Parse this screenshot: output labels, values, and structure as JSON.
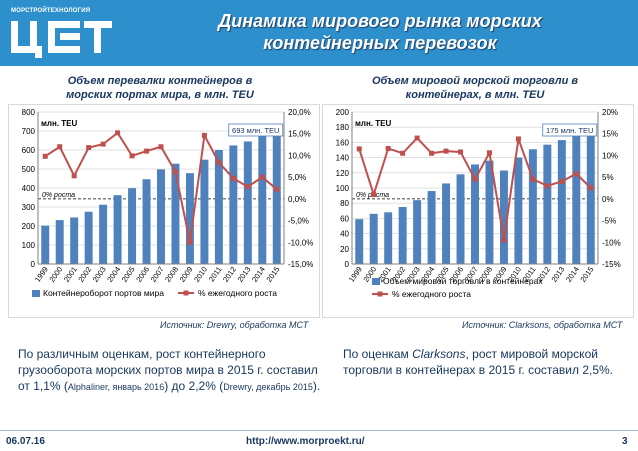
{
  "header": {
    "logo_caption": "МОРСТРОЙТЕХНОЛОГИЯ",
    "title_line1": "Динамика мирового рынка морских",
    "title_line2": "контейнерных перевозок",
    "colors": {
      "band": "#2e8fcd",
      "text": "#ffffff"
    }
  },
  "left": {
    "subtitle_line1": "Объем перевалки контейнеров в",
    "subtitle_line2": "морских портах мира, в млн. TEU",
    "source": "Источник: Drewry, обработка МСТ",
    "note_line1": "По различным оценкам, рост контейнерного",
    "note_line2": "грузооборота морских портов мира в 2015 г. составил",
    "note_line3_a": "от 1,1% (",
    "note_line3_b": "Alphaliner, январь 2016",
    "note_line3_c": ") до 2,2% (",
    "note_line3_d": "Drewry, декабрь 2015",
    "note_line3_e": ")."
  },
  "right": {
    "subtitle_line1": "Объем мировой морской торговли в",
    "subtitle_line2": "контейнерах, в млн. TEU",
    "source": "Источник: Clarksons, обработка МСТ",
    "note_line1_a": "По оценкам ",
    "note_line1_b": "Clarksons",
    "note_line1_c": ", рост мировой морской",
    "note_line2": "торговли в контейнерах в 2015 г. составил 2,5%."
  },
  "footer": {
    "date": "06.07.16",
    "url": "http://www.morproekt.ru/",
    "page": "3"
  },
  "chart_data": [
    {
      "type": "bar",
      "unit_label": "млн. TEU",
      "callout": "693 млн. TEU",
      "zero_label": "0% роста",
      "categories": [
        "1999",
        "2000",
        "2001",
        "2002",
        "2003",
        "2004",
        "2005",
        "2006",
        "2007",
        "2008",
        "2009",
        "2010",
        "2011",
        "2012",
        "2013",
        "2014",
        "2015"
      ],
      "series": [
        {
          "name": "Контейнероборот портов мира",
          "kind": "bar",
          "axis": "left",
          "values": [
            202,
            231,
            245,
            275,
            312,
            362,
            399,
            446,
            498,
            528,
            478,
            549,
            600,
            624,
            645,
            677,
            693
          ],
          "color": "#4f81bd"
        },
        {
          "name": "% ежегодного роста",
          "kind": "line",
          "axis": "right",
          "values": [
            9.8,
            12.0,
            5.3,
            11.8,
            12.6,
            15.2,
            9.9,
            11.0,
            12.0,
            6.2,
            -10.0,
            14.6,
            8.4,
            4.7,
            2.8,
            5.0,
            2.2
          ],
          "color": "#c0504d"
        }
      ],
      "ylim_left": [
        0,
        800
      ],
      "yticks_left": [
        "0",
        "100",
        "200",
        "300",
        "400",
        "500",
        "600",
        "700",
        "800"
      ],
      "ylim_right": [
        -15,
        20
      ],
      "yticks_right": [
        "-15,0%",
        "-10,0%",
        "-5,0%",
        "0,0%",
        "5,0%",
        "10,0%",
        "15,0%",
        "20,0%"
      ],
      "grid": true,
      "legend": "bottom"
    },
    {
      "type": "bar",
      "unit_label": "млн. TEU",
      "callout": "175 млн. TEU",
      "zero_label": "0% роста",
      "categories": [
        "1999",
        "2000",
        "2001",
        "2002",
        "2003",
        "2004",
        "2005",
        "2006",
        "2007",
        "2008",
        "2009",
        "2010",
        "2011",
        "2012",
        "2013",
        "2014",
        "2015"
      ],
      "series": [
        {
          "name": "Объем мировой торговли в контейнерах",
          "kind": "bar",
          "axis": "left",
          "values": [
            59,
            66,
            68,
            75,
            84,
            96,
            106,
            118,
            131,
            136,
            123,
            140,
            151,
            157,
            163,
            171,
            175
          ],
          "color": "#4f81bd"
        },
        {
          "name": "% ежегодного роста",
          "kind": "line",
          "axis": "right",
          "values": [
            11.5,
            1.0,
            11.6,
            10.5,
            14.0,
            10.5,
            11.0,
            10.8,
            4.5,
            10.6,
            -9.5,
            13.8,
            4.5,
            3.0,
            4.0,
            5.8,
            2.5
          ],
          "color": "#c0504d"
        }
      ],
      "ylim_left": [
        0,
        200
      ],
      "yticks_left": [
        "0",
        "20",
        "40",
        "60",
        "80",
        "100",
        "120",
        "140",
        "160",
        "180",
        "200"
      ],
      "ylim_right": [
        -15,
        20
      ],
      "yticks_right": [
        "-15%",
        "-10%",
        "-5%",
        "0%",
        "5%",
        "10%",
        "15%",
        "20%"
      ],
      "grid": true,
      "legend": "bottom"
    }
  ]
}
